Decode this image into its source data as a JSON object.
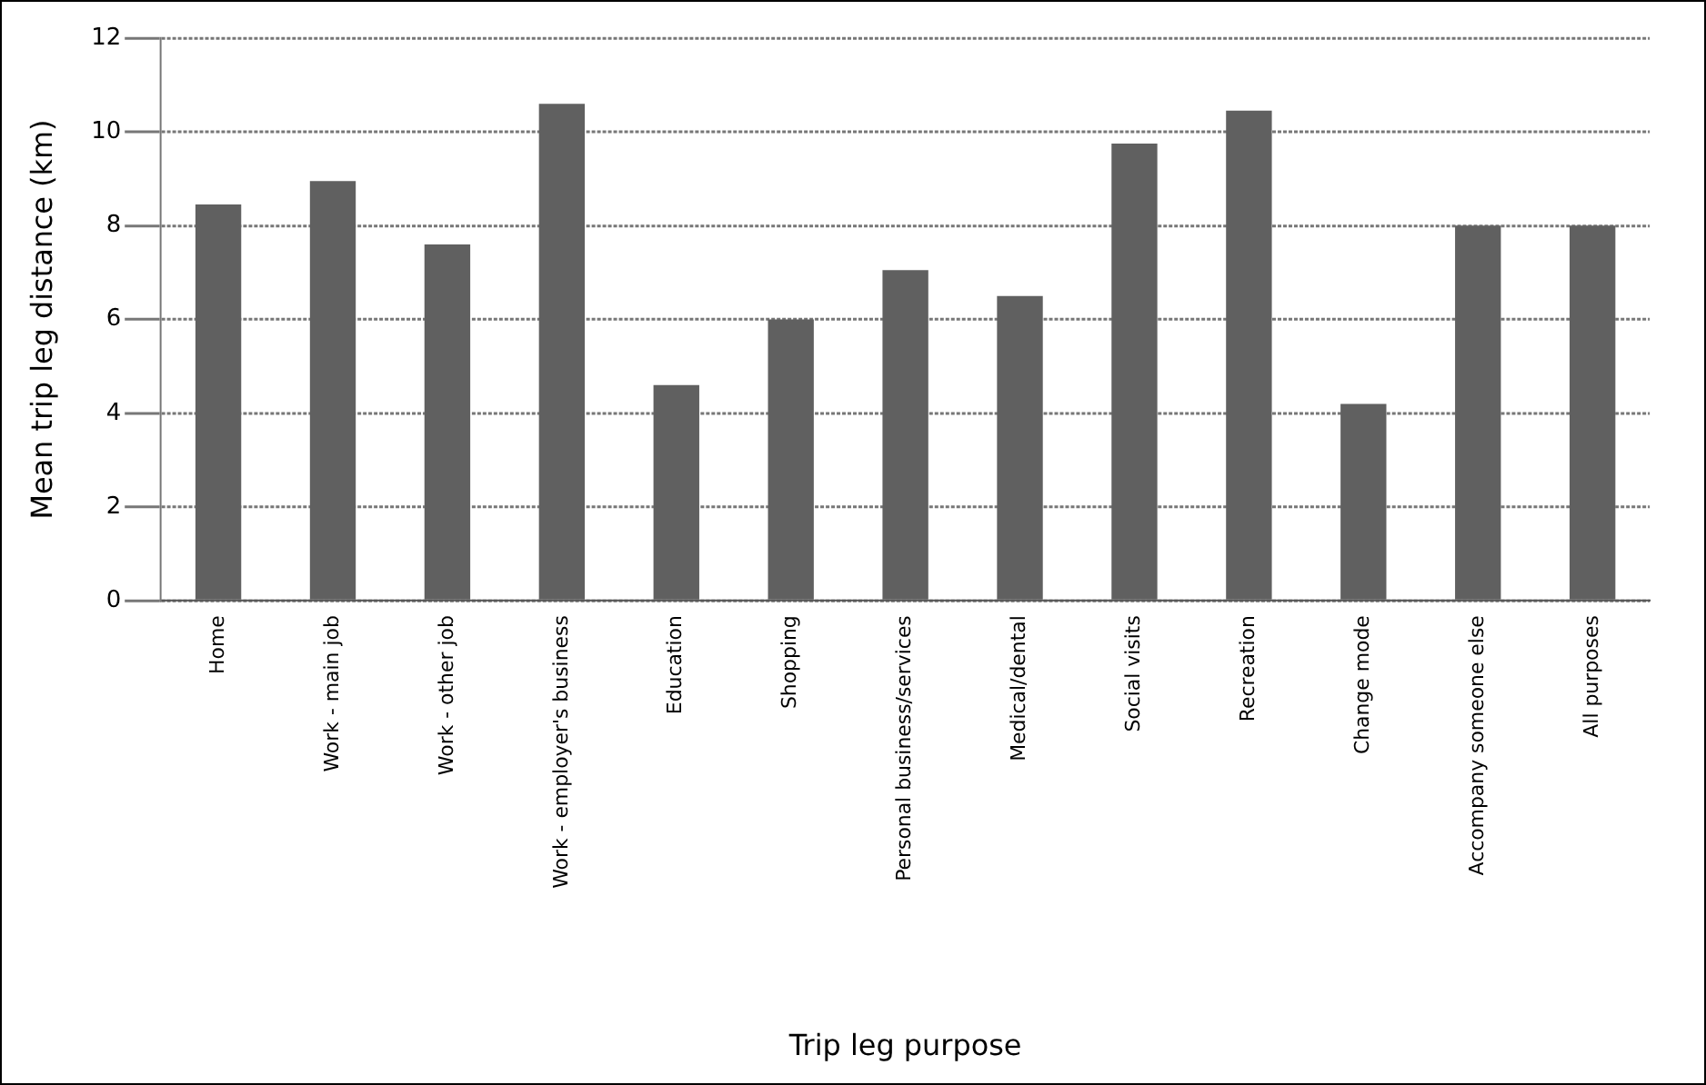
{
  "chart_data": {
    "type": "bar",
    "xlabel": "Trip leg purpose",
    "ylabel": "Mean trip leg distance (km)",
    "categories": [
      "Home",
      "Work - main job",
      "Work - other job",
      "Work - employer's business",
      "Education",
      "Shopping",
      "Personal business/services",
      "Medical/dental",
      "Social visits",
      "Recreation",
      "Change mode",
      "Accompany someone else",
      "All purposes"
    ],
    "values": [
      8.45,
      8.95,
      7.6,
      10.6,
      4.6,
      6.0,
      7.05,
      6.5,
      9.75,
      10.45,
      4.2,
      8.0,
      8.0
    ],
    "color": "#606060",
    "ylim": [
      0,
      12
    ],
    "yticks": [
      0,
      2,
      4,
      6,
      8,
      10,
      12
    ],
    "grid": "y",
    "legend": false
  }
}
